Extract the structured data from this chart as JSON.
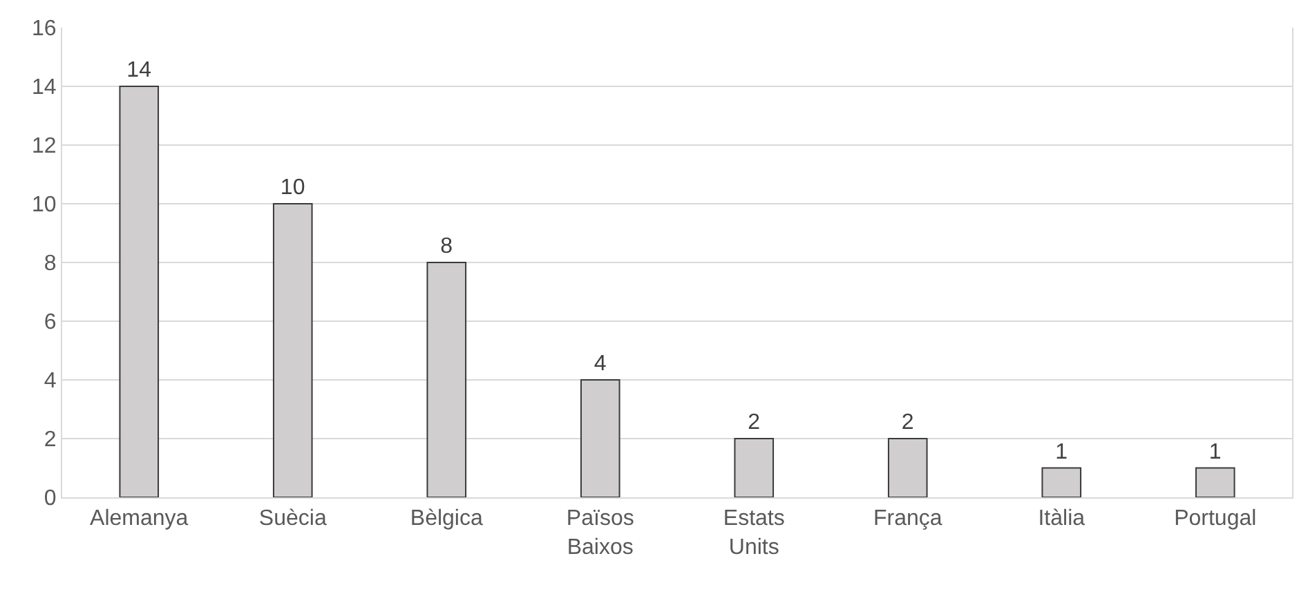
{
  "chart_data": {
    "type": "bar",
    "categories": [
      "Alemanya",
      "Suècia",
      "Bèlgica",
      "Països Baixos",
      "Estats Units",
      "França",
      "Itàlia",
      "Portugal"
    ],
    "values": [
      14,
      10,
      8,
      4,
      2,
      2,
      1,
      1
    ],
    "color": "#d0cece",
    "ylim": [
      0,
      16
    ],
    "yticks": [
      0,
      2,
      4,
      6,
      8,
      10,
      12,
      14,
      16
    ],
    "grid": "y",
    "data_labels": true
  }
}
